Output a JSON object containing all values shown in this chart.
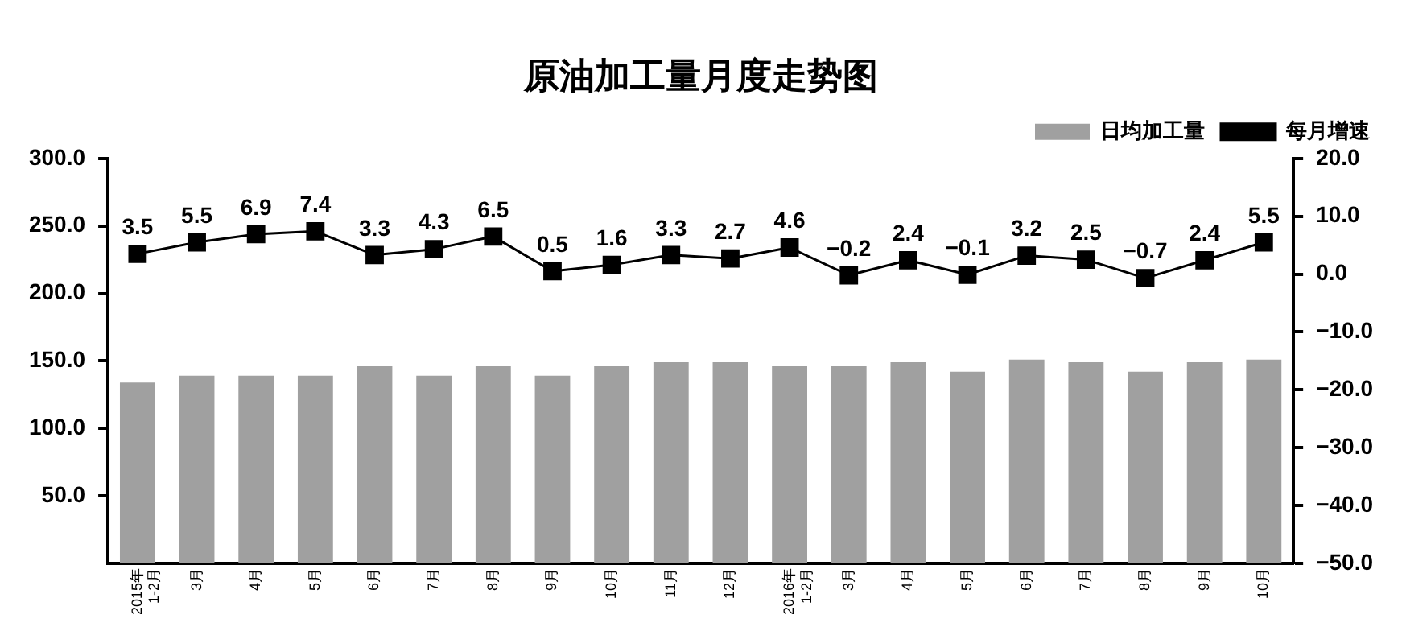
{
  "chart_data": {
    "type": "bar",
    "title": "原油加工量月度走势图",
    "categories": [
      "2015年 1-2月",
      "3月",
      "4月",
      "5月",
      "6月",
      "7月",
      "8月",
      "9月",
      "10月",
      "11月",
      "12月",
      "2016年 1-2月",
      "3月",
      "4月",
      "5月",
      "6月",
      "7月",
      "8月",
      "9月",
      "10月"
    ],
    "series": [
      {
        "name": "日均加工量",
        "color": "#a0a0a0",
        "values": [
          134,
          139,
          139,
          139,
          146,
          139,
          146,
          139,
          146,
          149,
          149,
          146,
          146,
          149,
          142,
          151,
          149,
          142,
          149,
          151
        ]
      },
      {
        "name": "每月增速",
        "type": "line",
        "axis": "y2",
        "color": "#000000",
        "values": [
          3.5,
          5.5,
          6.9,
          7.4,
          3.3,
          4.3,
          6.5,
          0.5,
          1.6,
          3.3,
          2.7,
          4.6,
          -0.2,
          2.4,
          -0.1,
          3.2,
          2.5,
          -0.7,
          2.4,
          5.5
        ],
        "value_labels": [
          "3.5",
          "5.5",
          "6.9",
          "7.4",
          "3.3",
          "4.3",
          "6.5",
          "0.5",
          "1.6",
          "3.3",
          "2.7",
          "4.6",
          "−0.2",
          "2.4",
          "−0.1",
          "3.2",
          "2.5",
          "−0.7",
          "2.4",
          "5.5"
        ]
      }
    ],
    "ylim": [
      0,
      300
    ],
    "yticks": [
      {
        "value": 50,
        "label": "50.0"
      },
      {
        "value": 100,
        "label": "100.0"
      },
      {
        "value": 150,
        "label": "150.0"
      },
      {
        "value": 200,
        "label": "200.0"
      },
      {
        "value": 250,
        "label": "250.0"
      },
      {
        "value": 300,
        "label": "300.0"
      }
    ],
    "y2lim": [
      -50,
      20
    ],
    "y2ticks": [
      {
        "value": -50,
        "label": "−50.0"
      },
      {
        "value": -40,
        "label": "−40.0"
      },
      {
        "value": -30,
        "label": "−30.0"
      },
      {
        "value": -20,
        "label": "−20.0"
      },
      {
        "value": -10,
        "label": "−10.0"
      },
      {
        "value": 0,
        "label": "0.0"
      },
      {
        "value": 10,
        "label": "10.0"
      },
      {
        "value": 20,
        "label": "20.0"
      }
    ],
    "grid": false,
    "legend": "top right",
    "marker": "square",
    "line_style": "solid"
  }
}
